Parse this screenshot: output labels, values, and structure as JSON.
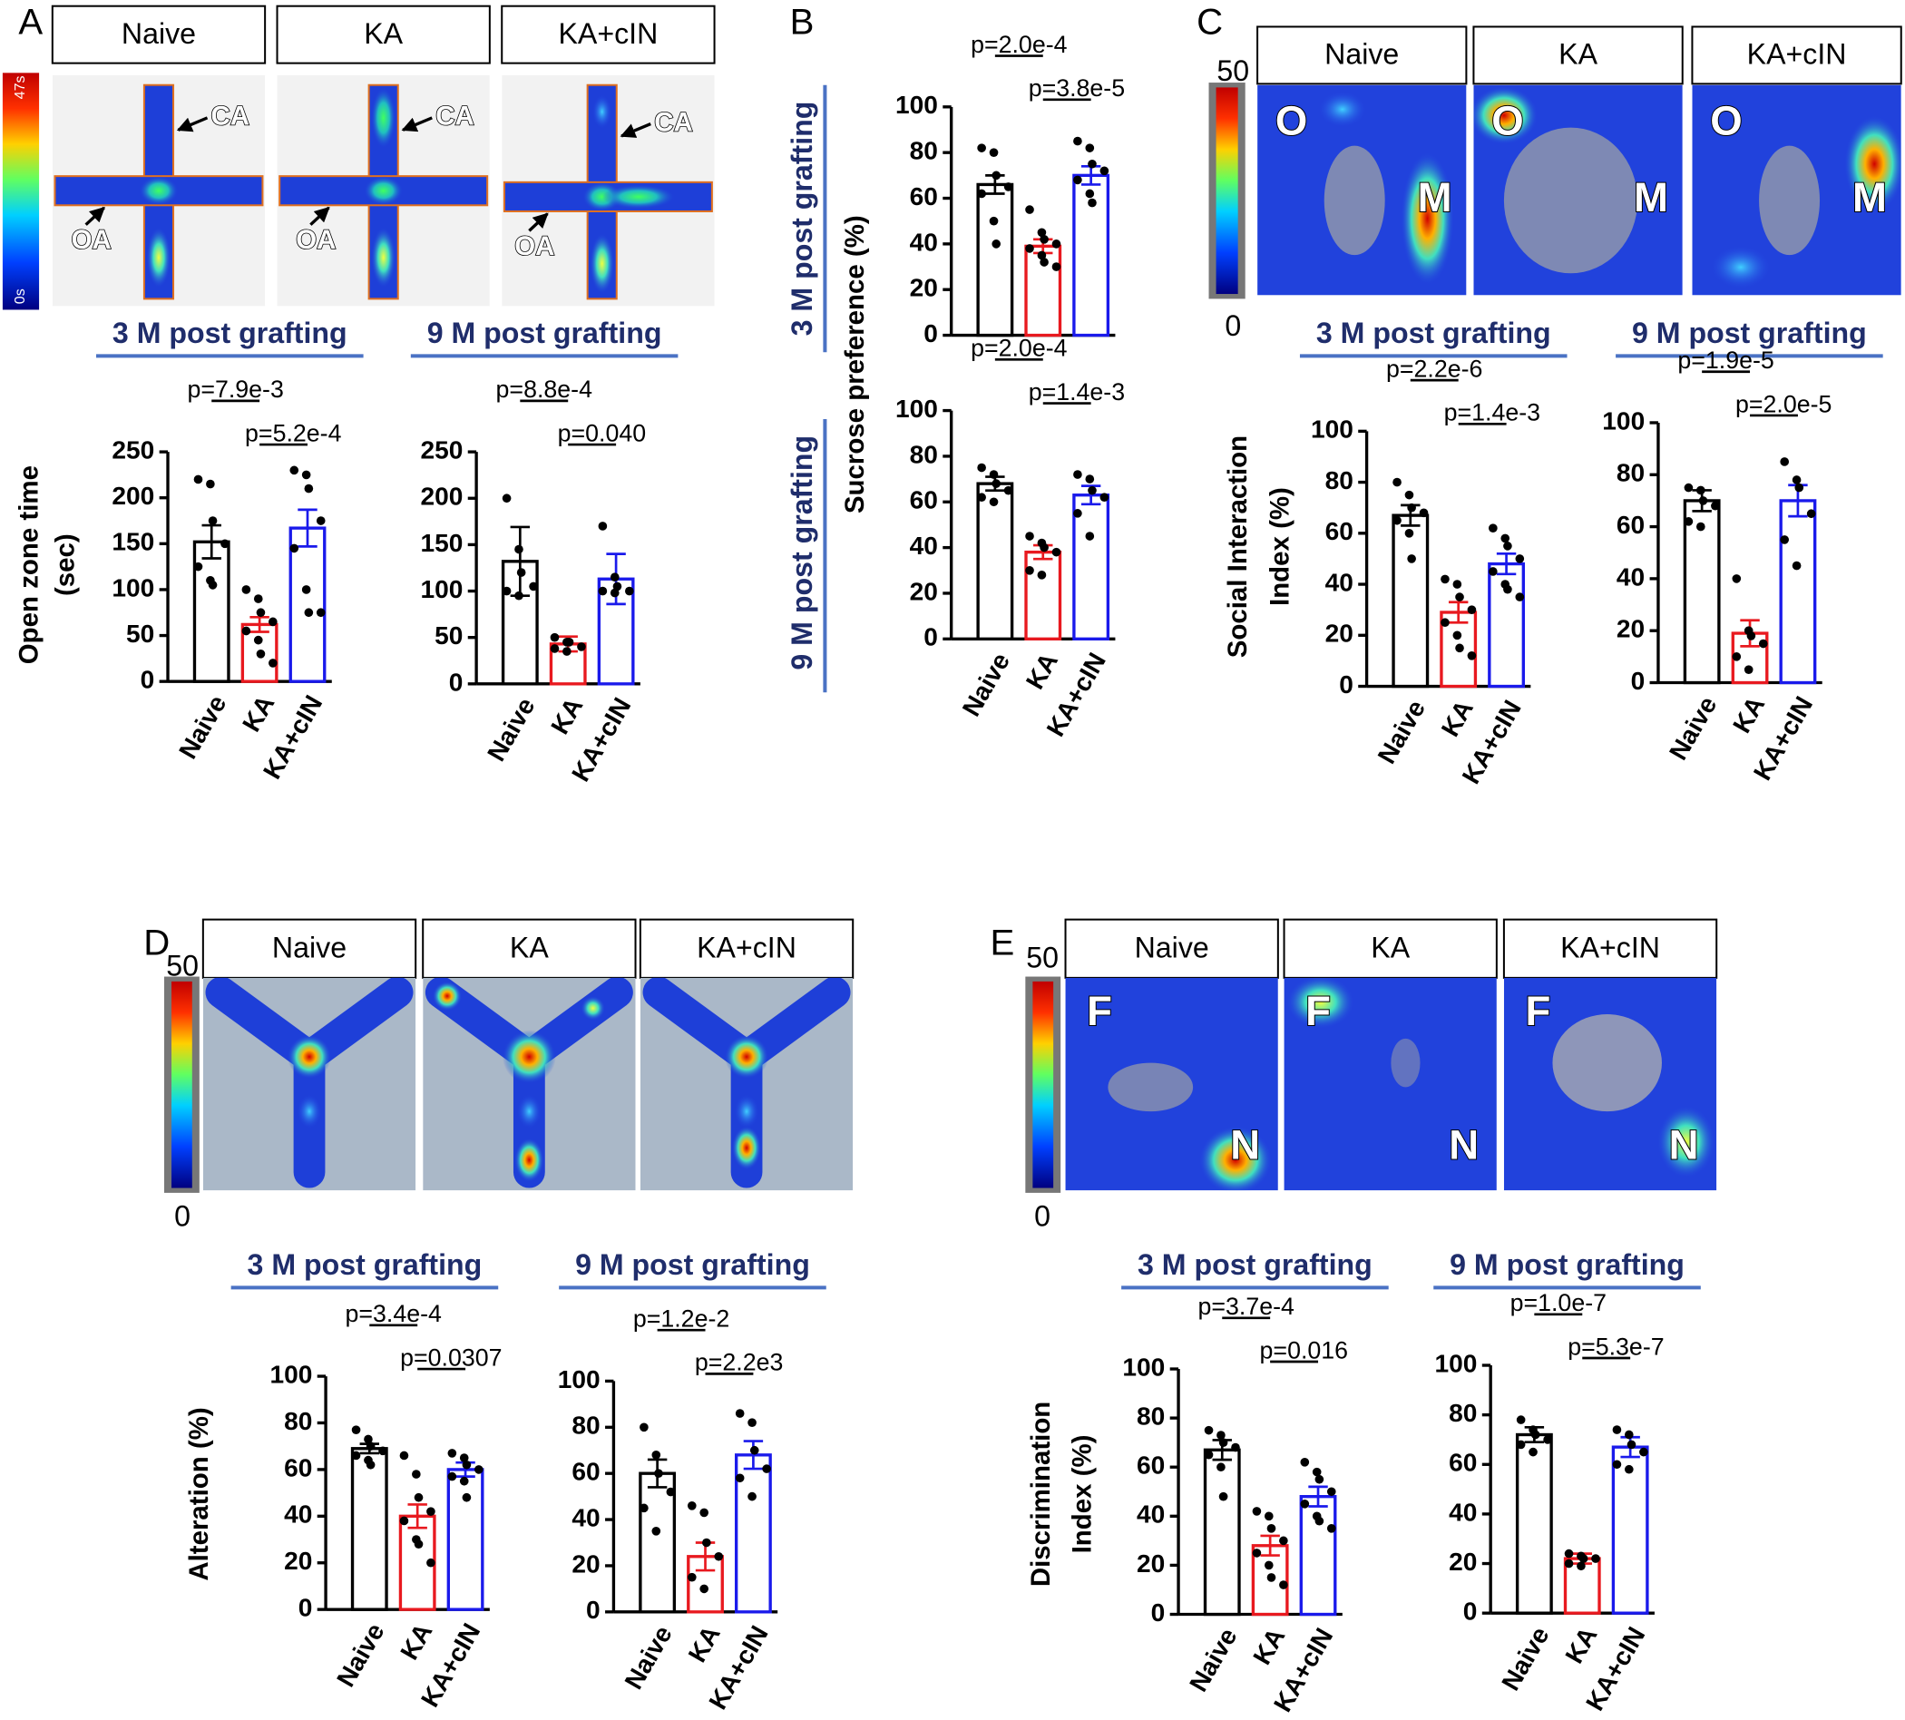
{
  "figure": {
    "panels": [
      {
        "label": "A",
        "headers": [
          "Naive",
          "KA",
          "KA+cIN"
        ],
        "colorbar": [
          "47s",
          "0s"
        ],
        "arm_labels": [
          "CA",
          "OA"
        ]
      },
      {
        "label": "B"
      },
      {
        "label": "C",
        "headers": [
          "Naive",
          "KA",
          "KA+cIN"
        ],
        "colorbar": [
          "50",
          "0"
        ],
        "zone_labels": [
          "O",
          "M"
        ]
      },
      {
        "label": "D",
        "headers": [
          "Naive",
          "KA",
          "KA+cIN"
        ],
        "colorbar": [
          "50",
          "0"
        ]
      },
      {
        "label": "E",
        "headers": [
          "Naive",
          "KA",
          "KA+cIN"
        ],
        "colorbar": [
          "50",
          "0"
        ],
        "zone_labels": [
          "F",
          "N"
        ]
      }
    ]
  },
  "chart_data": [
    {
      "type": "bar",
      "title": "3 M post grafting",
      "ylabel": [
        "Open zone time",
        "(sec)"
      ],
      "categories": [
        "Naive",
        "KA",
        "KA+cIN"
      ],
      "colors": [
        "#000000",
        "#e8191f",
        "#1a1aeb"
      ],
      "values": [
        152,
        62,
        167
      ],
      "errors": [
        18,
        8,
        20
      ],
      "points": [
        [
          220,
          215,
          175,
          150,
          125,
          110,
          105
        ],
        [
          100,
          90,
          75,
          65,
          55,
          45,
          30,
          20
        ],
        [
          230,
          225,
          210,
          175,
          145,
          100,
          75,
          75
        ]
      ],
      "ylim": [
        0,
        250
      ],
      "yticks": [
        0,
        50,
        100,
        150,
        200,
        250
      ],
      "pvalues": [
        "p=7.9e-3",
        "p=5.2e-4"
      ]
    },
    {
      "type": "bar",
      "title": "9 M post grafting",
      "categories": [
        "Naive",
        "KA",
        "KA+cIN"
      ],
      "colors": [
        "#000000",
        "#e8191f",
        "#1a1aeb"
      ],
      "values": [
        132,
        43,
        113
      ],
      "errors": [
        37,
        8,
        27
      ],
      "points": [
        [
          200,
          145,
          120,
          105,
          100,
          95
        ],
        [
          50,
          45,
          45,
          40,
          38,
          35
        ],
        [
          170,
          115,
          105,
          100,
          100,
          98
        ]
      ],
      "ylim": [
        0,
        250
      ],
      "yticks": [
        0,
        50,
        100,
        150,
        200,
        250
      ],
      "pvalues": [
        "p=8.8e-4",
        "p=0.040"
      ]
    },
    {
      "type": "bar",
      "title": "3 M post grafting",
      "ylabel": [
        "Sucrose preference (%)"
      ],
      "categories": [
        "Naive",
        "KA",
        "KA+cIN"
      ],
      "colors": [
        "#000000",
        "#e8191f",
        "#1a1aeb"
      ],
      "values": [
        66,
        39,
        70
      ],
      "errors": [
        4,
        3,
        4
      ],
      "points": [
        [
          82,
          80,
          70,
          65,
          62,
          50,
          40
        ],
        [
          55,
          45,
          42,
          40,
          38,
          35,
          32,
          30
        ],
        [
          85,
          82,
          75,
          72,
          68,
          62,
          58
        ]
      ],
      "ylim": [
        0,
        100
      ],
      "yticks": [
        0,
        20,
        40,
        60,
        80,
        100
      ],
      "pvalues": [
        "p=2.0e-4",
        "p=3.8e-5"
      ]
    },
    {
      "type": "bar",
      "title": "9 M post grafting",
      "categories": [
        "Naive",
        "KA",
        "KA+cIN"
      ],
      "colors": [
        "#000000",
        "#e8191f",
        "#1a1aeb"
      ],
      "values": [
        68,
        38,
        63
      ],
      "errors": [
        3,
        3,
        4
      ],
      "points": [
        [
          75,
          72,
          68,
          65,
          62,
          60
        ],
        [
          45,
          42,
          40,
          38,
          30,
          28
        ],
        [
          72,
          70,
          65,
          62,
          55,
          45
        ]
      ],
      "ylim": [
        0,
        100
      ],
      "yticks": [
        0,
        20,
        40,
        60,
        80,
        100
      ],
      "pvalues": [
        "p=2.0e-4",
        "p=1.4e-3"
      ]
    },
    {
      "type": "bar",
      "title": "3 M post grafting",
      "ylabel": [
        "Social Interaction",
        "Index (%)"
      ],
      "categories": [
        "Naive",
        "KA",
        "KA+cIN"
      ],
      "colors": [
        "#000000",
        "#e8191f",
        "#1a1aeb"
      ],
      "values": [
        67,
        29,
        48
      ],
      "errors": [
        4,
        4,
        4
      ],
      "points": [
        [
          80,
          75,
          70,
          68,
          65,
          60,
          50
        ],
        [
          42,
          40,
          35,
          30,
          25,
          20,
          15,
          12
        ],
        [
          62,
          58,
          55,
          50,
          45,
          40,
          38,
          35
        ]
      ],
      "ylim": [
        0,
        100
      ],
      "yticks": [
        0,
        20,
        40,
        60,
        80,
        100
      ],
      "pvalues": [
        "p=2.2e-6",
        "p=1.4e-3"
      ]
    },
    {
      "type": "bar",
      "title": "9 M post grafting",
      "categories": [
        "Naive",
        "KA",
        "KA+cIN"
      ],
      "colors": [
        "#000000",
        "#e8191f",
        "#1a1aeb"
      ],
      "values": [
        70,
        19,
        70
      ],
      "errors": [
        4,
        5,
        6
      ],
      "points": [
        [
          75,
          74,
          70,
          68,
          62,
          60
        ],
        [
          40,
          20,
          18,
          15,
          10,
          5
        ],
        [
          85,
          78,
          75,
          65,
          55,
          45
        ]
      ],
      "ylim": [
        0,
        100
      ],
      "yticks": [
        0,
        20,
        40,
        60,
        80,
        100
      ],
      "pvalues": [
        "p=1.9e-5",
        "p=2.0e-5"
      ]
    },
    {
      "type": "bar",
      "title": "3 M post grafting",
      "ylabel": [
        "Alteration (%)"
      ],
      "categories": [
        "Naive",
        "KA",
        "KA+cIN"
      ],
      "colors": [
        "#000000",
        "#e8191f",
        "#1a1aeb"
      ],
      "values": [
        69,
        40,
        60
      ],
      "errors": [
        2,
        5,
        3
      ],
      "points": [
        [
          77,
          73,
          70,
          68,
          66,
          64,
          62
        ],
        [
          66,
          58,
          48,
          42,
          38,
          30,
          28,
          20
        ],
        [
          67,
          65,
          62,
          60,
          57,
          55,
          48
        ]
      ],
      "ylim": [
        0,
        100
      ],
      "yticks": [
        0,
        20,
        40,
        60,
        80,
        100
      ],
      "pvalues": [
        "p=3.4e-4",
        "p=0.0307"
      ]
    },
    {
      "type": "bar",
      "title": "9 M post grafting",
      "categories": [
        "Naive",
        "KA",
        "KA+cIN"
      ],
      "colors": [
        "#000000",
        "#e8191f",
        "#1a1aeb"
      ],
      "values": [
        60,
        24,
        68
      ],
      "errors": [
        6,
        6,
        6
      ],
      "points": [
        [
          80,
          68,
          60,
          52,
          45,
          35
        ],
        [
          46,
          43,
          30,
          24,
          15,
          10
        ],
        [
          86,
          82,
          70,
          62,
          58,
          50
        ]
      ],
      "ylim": [
        0,
        100
      ],
      "yticks": [
        0,
        20,
        40,
        60,
        80,
        100
      ],
      "pvalues": [
        "p=1.2e-2",
        "p=2.2e3"
      ]
    },
    {
      "type": "bar",
      "title": "3 M post grafting",
      "ylabel": [
        "Discrimination",
        "Index (%)"
      ],
      "categories": [
        "Naive",
        "KA",
        "KA+cIN"
      ],
      "colors": [
        "#000000",
        "#e8191f",
        "#1a1aeb"
      ],
      "values": [
        67,
        28,
        48
      ],
      "errors": [
        4,
        4,
        4
      ],
      "points": [
        [
          75,
          73,
          70,
          68,
          65,
          60,
          48
        ],
        [
          42,
          40,
          35,
          30,
          25,
          20,
          15,
          12
        ],
        [
          62,
          58,
          55,
          50,
          45,
          40,
          38,
          35
        ]
      ],
      "ylim": [
        0,
        100
      ],
      "yticks": [
        0,
        20,
        40,
        60,
        80,
        100
      ],
      "pvalues": [
        "p=3.7e-4",
        "p=0.016"
      ]
    },
    {
      "type": "bar",
      "title": "9 M post grafting",
      "categories": [
        "Naive",
        "KA",
        "KA+cIN"
      ],
      "colors": [
        "#000000",
        "#e8191f",
        "#1a1aeb"
      ],
      "values": [
        72,
        22,
        67
      ],
      "errors": [
        3,
        2,
        4
      ],
      "points": [
        [
          78,
          74,
          72,
          70,
          68,
          65
        ],
        [
          24,
          23,
          22,
          22,
          20,
          19
        ],
        [
          74,
          72,
          68,
          65,
          60,
          58
        ]
      ],
      "ylim": [
        0,
        100
      ],
      "yticks": [
        0,
        20,
        40,
        60,
        80,
        100
      ],
      "pvalues": [
        "p=1.0e-7",
        "p=5.3e-7"
      ]
    }
  ]
}
